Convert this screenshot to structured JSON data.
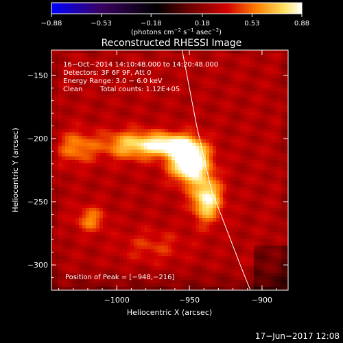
{
  "chart_data": {
    "type": "heatmap",
    "title": "Reconstructed RHESSI Image",
    "xlabel": "Heliocentric X (arcsec)",
    "ylabel": "Heliocentric Y (arcsec)",
    "xlim": [
      -1045,
      -882
    ],
    "ylim": [
      -320,
      -130
    ],
    "x_ticks": [
      -1000,
      -950,
      -900
    ],
    "x_tick_labels": [
      "−1000",
      "−950",
      "−900"
    ],
    "y_ticks": [
      -150,
      -200,
      -250,
      -300
    ],
    "y_tick_labels": [
      "−150",
      "−200",
      "−250",
      "−300"
    ],
    "colorbar": {
      "min": -0.88,
      "max": 0.88,
      "ticks": [
        -0.88,
        -0.53,
        -0.18,
        0.18,
        0.53,
        0.88
      ],
      "tick_labels": [
        "−0.88",
        "−0.53",
        "−0.18",
        "0.18",
        "0.53",
        "0.88"
      ],
      "unit_prefix": "(photons cm",
      "unit_exp1": "−2",
      "unit_mid": " s",
      "unit_exp2": "−1",
      "unit_mid2": " asec",
      "unit_exp3": "−2",
      "unit_suffix": ")",
      "colors": [
        "#0000ff",
        "#3a0060",
        "#000000",
        "#6a0000",
        "#d20000",
        "#ff8000",
        "#ffe060",
        "#ffffff"
      ]
    },
    "annotations": {
      "line1": "16−Oct−2014 14:10:48.000 to 14:20:48.000",
      "line2": "Detectors: 3F 6F 9F, Att 0",
      "line3": "Energy Range: 3.0 − 6.0 keV",
      "line4_a": "Clean",
      "line4_b": "Total counts: 1.12E+05",
      "peak": "Position of Peak = [−948,−216]"
    },
    "sources": [
      {
        "x": -950,
        "y": -218,
        "amp": 0.88,
        "sx": 9,
        "sy": 11
      },
      {
        "x": -938,
        "y": -248,
        "amp": 0.6,
        "sx": 7,
        "sy": 12
      },
      {
        "x": -965,
        "y": -205,
        "amp": 0.5,
        "sx": 12,
        "sy": 6
      },
      {
        "x": -990,
        "y": -205,
        "amp": 0.42,
        "sx": 15,
        "sy": 8
      },
      {
        "x": -1028,
        "y": -207,
        "amp": 0.3,
        "sx": 9,
        "sy": 9
      },
      {
        "x": -1018,
        "y": -264,
        "amp": 0.3,
        "sx": 7,
        "sy": 7
      },
      {
        "x": -975,
        "y": -285,
        "amp": 0.15,
        "sx": 16,
        "sy": 9
      }
    ],
    "limb": [
      [
        -955,
        -130
      ],
      [
        -945,
        -190
      ],
      [
        -935,
        -240
      ],
      [
        -925,
        -270
      ],
      [
        -915,
        -300
      ],
      [
        -908,
        -320
      ]
    ]
  },
  "timestamp": "17−Jun−2017 12:08"
}
